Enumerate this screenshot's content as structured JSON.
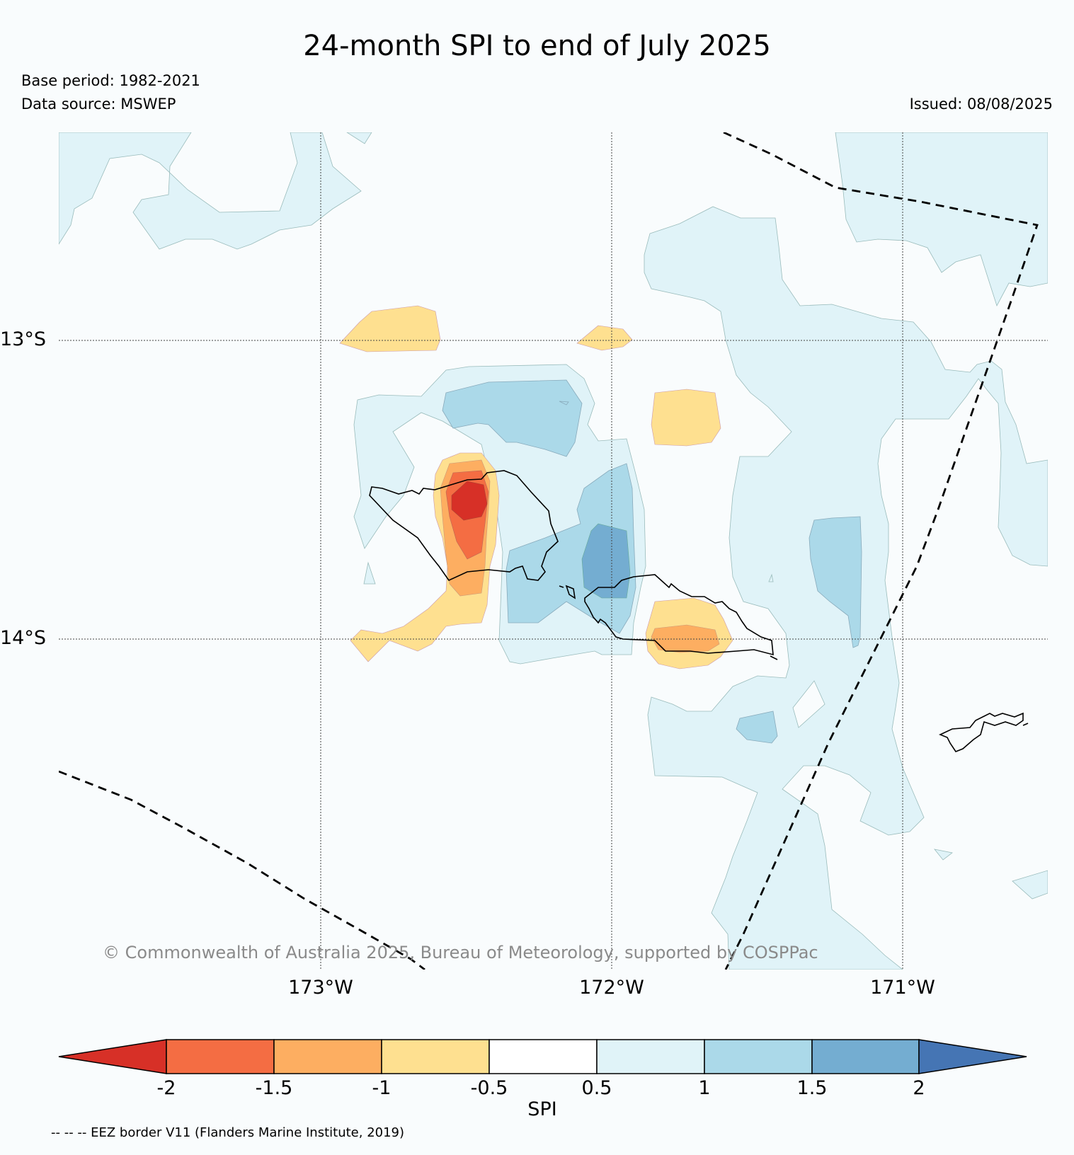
{
  "title": "24-month SPI to end of July 2025",
  "base_period": "Base period: 1982-2021",
  "data_source": "Data source: MSWEP",
  "issued": "Issued: 08/08/2025",
  "latitude_labels": [
    "13°S",
    "14°S"
  ],
  "longitude_labels": [
    "173°W",
    "172°W",
    "171°W"
  ],
  "copyright": "© Commonwealth of Australia 2025, Bureau of Meteorology, supported by COSPPac",
  "colorbar": {
    "label": "SPI",
    "ticks": [
      "-2",
      "-1.5",
      "-1",
      "-0.5",
      "0.5",
      "1",
      "1.5",
      "2"
    ],
    "colors": [
      "#d73027",
      "#f46d43",
      "#fdae61",
      "#fee090",
      "#ffffff",
      "#e0f3f8",
      "#abd9e9",
      "#74add1",
      "#4575b4"
    ]
  },
  "footnote": "-- -- -- EEZ border V11 (Flanders Marine Institute, 2019)"
}
